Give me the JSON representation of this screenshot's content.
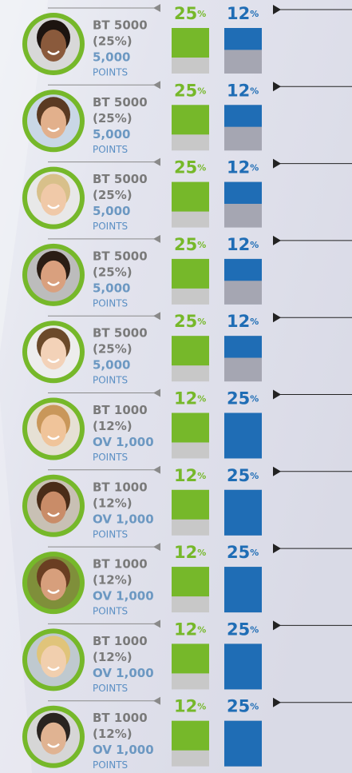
{
  "unit": "%",
  "rows": [
    {
      "title": "BT 5000",
      "share": "(25%)",
      "points": "5,000",
      "points_label": "POINTS",
      "green": 25,
      "blue": 12
    },
    {
      "title": "BT 5000",
      "share": "(25%)",
      "points": "5,000",
      "points_label": "POINTS",
      "green": 25,
      "blue": 12
    },
    {
      "title": "BT 5000",
      "share": "(25%)",
      "points": "5,000",
      "points_label": "POINTS",
      "green": 25,
      "blue": 12
    },
    {
      "title": "BT 5000",
      "share": "(25%)",
      "points": "5,000",
      "points_label": "POINTS",
      "green": 25,
      "blue": 12
    },
    {
      "title": "BT 5000",
      "share": "(25%)",
      "points": "5,000",
      "points_label": "POINTS",
      "green": 25,
      "blue": 12
    },
    {
      "title": "BT 1000",
      "share": "(12%)",
      "points": "OV 1,000",
      "points_label": "POINTS",
      "green": 12,
      "blue": 25
    },
    {
      "title": "BT 1000",
      "share": "(12%)",
      "points": "OV 1,000",
      "points_label": "POINTS",
      "green": 12,
      "blue": 25
    },
    {
      "title": "BT 1000",
      "share": "(12%)",
      "points": "OV 1,000",
      "points_label": "POINTS",
      "green": 12,
      "blue": 25
    },
    {
      "title": "BT 1000",
      "share": "(12%)",
      "points": "OV 1,000",
      "points_label": "POINTS",
      "green": 12,
      "blue": 25
    },
    {
      "title": "BT 1000",
      "share": "(12%)",
      "points": "OV 1,000",
      "points_label": "POINTS",
      "green": 12,
      "blue": 25
    }
  ]
}
